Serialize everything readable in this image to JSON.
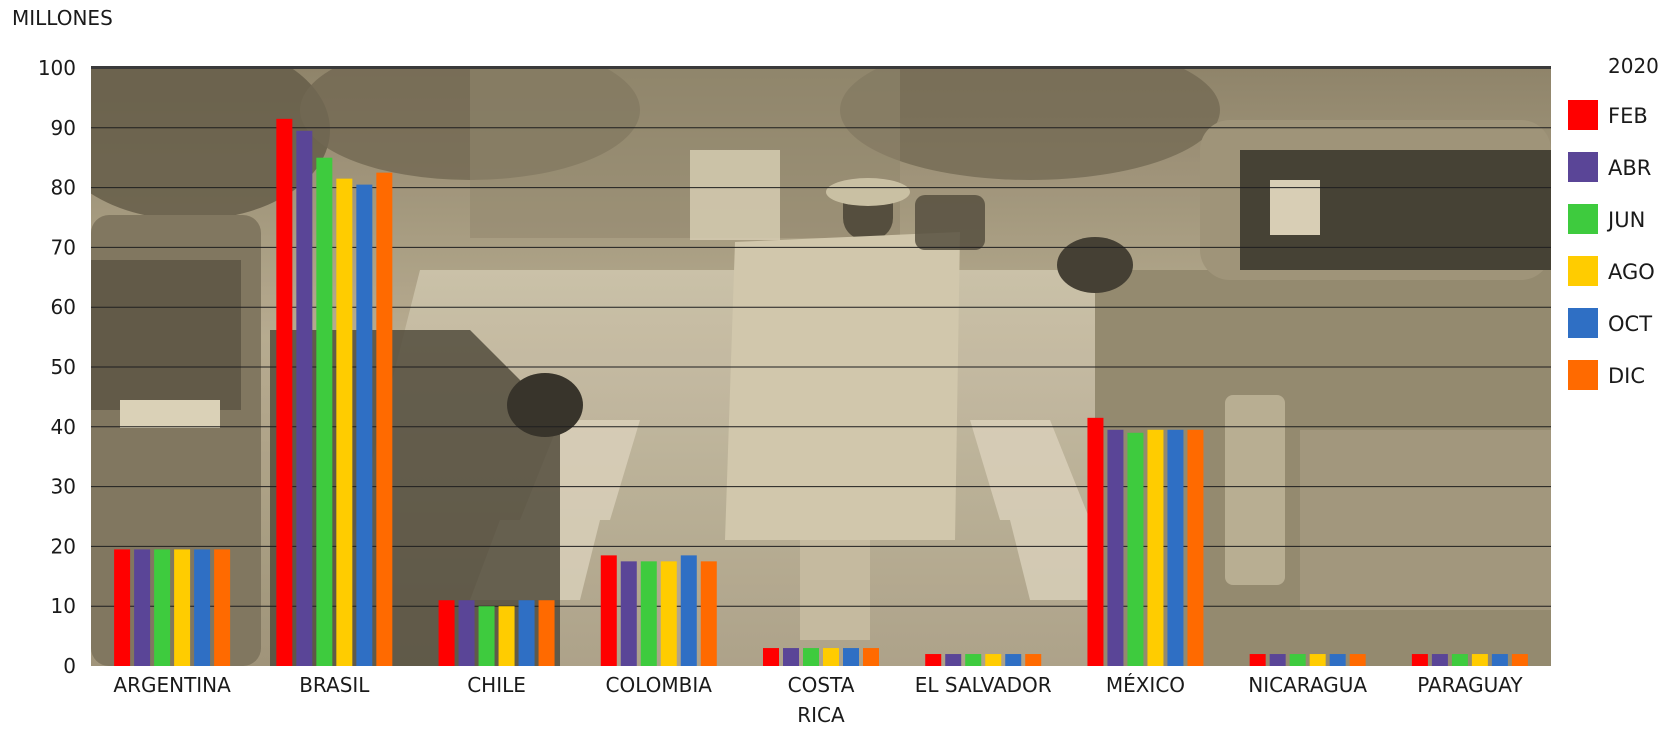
{
  "chart_data": {
    "type": "bar",
    "ylabel": "MILLONES",
    "ylim": [
      0,
      100
    ],
    "yticks": [
      0,
      10,
      20,
      30,
      40,
      50,
      60,
      70,
      80,
      90,
      100
    ],
    "grid": true,
    "legend_title": "2020",
    "legend_position": "right",
    "categories": [
      "ARGENTINA",
      "BRASIL",
      "CHILE",
      "COLOMBIA",
      "COSTA RICA",
      "EL SALVADOR",
      "MÉXICO",
      "NICARAGUA",
      "PARAGUAY"
    ],
    "series": [
      {
        "name": "FEB",
        "color": "#ff0000",
        "values": [
          19.5,
          91.5,
          11,
          18.5,
          3,
          2,
          41.5,
          2,
          2
        ]
      },
      {
        "name": "ABR",
        "color": "#5a4597",
        "values": [
          19.5,
          89.5,
          11,
          17.5,
          3,
          2,
          39.5,
          2,
          2
        ]
      },
      {
        "name": "JUN",
        "color": "#3ecb3e",
        "values": [
          19.5,
          85,
          10,
          17.5,
          3,
          2,
          39,
          2,
          2
        ]
      },
      {
        "name": "AGO",
        "color": "#ffcc00",
        "values": [
          19.5,
          81.5,
          10,
          17.5,
          3,
          2,
          39.5,
          2,
          2
        ]
      },
      {
        "name": "OCT",
        "color": "#2f6fc4",
        "values": [
          19.5,
          80.5,
          11,
          18.5,
          3,
          2,
          39.5,
          2,
          2
        ]
      },
      {
        "name": "DIC",
        "color": "#ff6a00",
        "values": [
          19.5,
          82.5,
          11,
          17.5,
          3,
          2,
          39.5,
          2,
          2
        ]
      }
    ]
  }
}
